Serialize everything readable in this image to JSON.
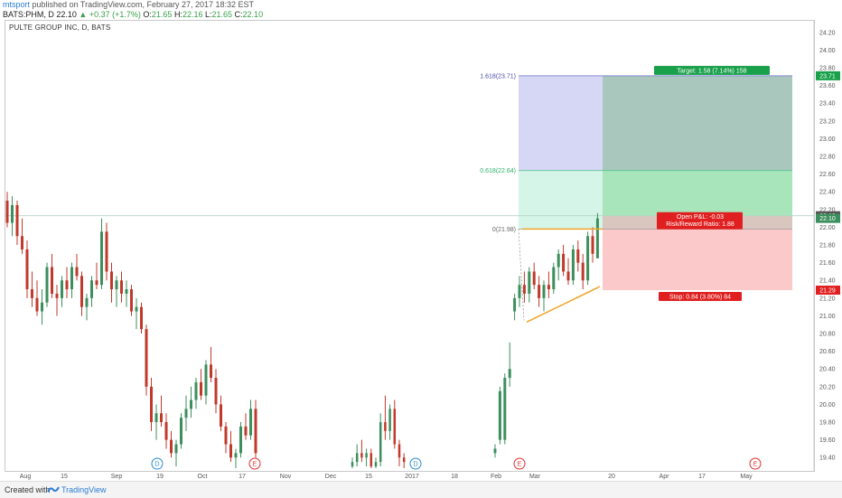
{
  "header": {
    "author": "mtsport",
    "published": "published on TradingView.com, February 27, 2017 18:32 EST",
    "symbol_line": "BATS:PHM, D",
    "last": "22.10",
    "change": "▲ +0.37 (+1.7%)",
    "ohlc": "O: 21.65 H: 22.16 L: 21.65 C: 22.10",
    "ohlc_prefix": "O:",
    "o": "21.65",
    "h_prefix": "H:",
    "h": "22.16",
    "l_prefix": "L:",
    "l": "21.65",
    "c_prefix": "C:",
    "c": "22.10"
  },
  "chart_title": "PULTE GROUP INC, D, BATS",
  "footer": {
    "created": "Created with",
    "brand": "TradingView"
  },
  "colors": {
    "up": "#3c8f5d",
    "down": "#c0392b",
    "fib_top": "#d6d6f5",
    "fib_mid": "#d5f5e8",
    "target": "#a9c7bd",
    "target_light": "#a8e5bb",
    "stop": "#fbc9c9",
    "trend": "#f0a42a"
  },
  "chart_data": {
    "type": "candlestick",
    "title": "PULTE GROUP INC, D, BATS",
    "ylim": [
      19.28,
      24.28
    ],
    "y_ticks": [
      "24.20",
      "24.00",
      "23.80",
      "23.60",
      "23.40",
      "23.20",
      "23.00",
      "22.80",
      "22.60",
      "22.40",
      "22.20",
      "22.00",
      "21.80",
      "21.60",
      "21.40",
      "21.20",
      "21.00",
      "20.80",
      "20.60",
      "20.40",
      "20.20",
      "20.00",
      "19.80",
      "19.60",
      "19.40"
    ],
    "x_ticks": [
      "Aug",
      "15",
      "Sep",
      "19",
      "Oct",
      "17",
      "Nov",
      "Dec",
      "15",
      "2017",
      "18",
      "Feb",
      "Mar",
      "20",
      "Apr",
      "17",
      "May"
    ],
    "price_labels": [
      {
        "text": "23.71",
        "value": 23.71,
        "color": "#19a04a"
      },
      {
        "text": "22.13",
        "value": 22.13,
        "color": "#555555"
      },
      {
        "text": "22.10",
        "value": 22.1,
        "color": "#3c8f5d"
      },
      {
        "text": "21.29",
        "value": 21.29,
        "color": "#e02020"
      }
    ],
    "fib_levels": [
      {
        "label": "1.618(23.71)",
        "value": 23.71
      },
      {
        "label": "0.618(22.64)",
        "value": 22.64
      },
      {
        "label": "0(21.98)",
        "value": 21.98
      }
    ],
    "position": {
      "target_label": "Target: 1.58 (7.14%) 158",
      "stop_label": "Stop: 0.84 (3.80%) 84",
      "open_pl": "Open P&L: -0.03",
      "risk_reward": "Risk/Reward Ratio: 1.88",
      "entry": 22.13,
      "target": 23.71,
      "stop": 21.29
    },
    "events": [
      {
        "x_index": 0,
        "letter": "D"
      },
      {
        "x_index": 1,
        "letter": "E"
      },
      {
        "x_index": 2,
        "letter": "D"
      },
      {
        "x_index": 3,
        "letter": "E"
      },
      {
        "x_index": 4,
        "letter": "E"
      }
    ],
    "candles_seg1": [
      [
        22.3,
        22.4,
        22.0,
        22.05
      ],
      [
        22.05,
        22.35,
        21.9,
        22.25
      ],
      [
        22.25,
        22.3,
        21.8,
        21.9
      ],
      [
        21.9,
        22.1,
        21.7,
        21.75
      ],
      [
        21.75,
        21.85,
        21.2,
        21.3
      ],
      [
        21.3,
        21.5,
        21.1,
        21.2
      ],
      [
        21.2,
        21.4,
        21.0,
        21.05
      ],
      [
        21.05,
        21.3,
        20.9,
        21.15
      ],
      [
        21.15,
        21.6,
        21.1,
        21.55
      ],
      [
        21.55,
        21.7,
        21.2,
        21.25
      ],
      [
        21.25,
        21.35,
        21.0,
        21.2
      ],
      [
        21.2,
        21.45,
        21.1,
        21.4
      ],
      [
        21.4,
        21.55,
        21.2,
        21.3
      ],
      [
        21.3,
        21.6,
        21.2,
        21.55
      ],
      [
        21.55,
        21.7,
        21.4,
        21.45
      ],
      [
        21.45,
        21.5,
        21.0,
        21.1
      ],
      [
        21.1,
        21.25,
        20.95,
        21.2
      ],
      [
        21.2,
        21.45,
        21.1,
        21.4
      ],
      [
        21.4,
        21.6,
        21.3,
        21.35
      ],
      [
        21.35,
        22.1,
        21.3,
        21.95
      ],
      [
        21.95,
        22.05,
        21.4,
        21.5
      ],
      [
        21.5,
        21.6,
        21.15,
        21.3
      ],
      [
        21.3,
        21.45,
        21.1,
        21.4
      ],
      [
        21.4,
        21.5,
        21.15,
        21.25
      ],
      [
        21.25,
        21.4,
        21.1,
        21.3
      ],
      [
        21.3,
        21.35,
        21.0,
        21.05
      ],
      [
        21.05,
        21.2,
        20.85,
        21.1
      ],
      [
        21.1,
        21.15,
        20.8,
        20.85
      ],
      [
        20.85,
        20.9,
        20.1,
        20.2
      ],
      [
        20.2,
        20.3,
        19.7,
        19.8
      ],
      [
        19.8,
        20.0,
        19.6,
        19.9
      ],
      [
        19.9,
        20.1,
        19.75,
        19.8
      ],
      [
        19.8,
        19.9,
        19.5,
        19.6
      ],
      [
        19.6,
        19.7,
        19.4,
        19.45
      ],
      [
        19.45,
        19.6,
        19.3,
        19.55
      ],
      [
        19.55,
        19.9,
        19.5,
        19.85
      ],
      [
        19.85,
        20.1,
        19.7,
        19.95
      ],
      [
        19.95,
        20.2,
        19.85,
        20.05
      ],
      [
        20.05,
        20.3,
        19.95,
        20.25
      ],
      [
        20.25,
        20.4,
        20.05,
        20.1
      ],
      [
        20.1,
        20.5,
        20.0,
        20.45
      ],
      [
        20.45,
        20.65,
        20.25,
        20.3
      ],
      [
        20.3,
        20.4,
        19.9,
        20.0
      ],
      [
        20.0,
        20.1,
        19.7,
        19.75
      ],
      [
        19.75,
        19.8,
        19.45,
        19.55
      ],
      [
        19.55,
        19.7,
        19.35,
        19.4
      ],
      [
        19.4,
        19.5,
        19.28,
        19.45
      ],
      [
        19.45,
        19.8,
        19.4,
        19.75
      ],
      [
        19.75,
        19.9,
        19.6,
        19.65
      ],
      [
        19.65,
        20.05,
        19.6,
        19.95
      ],
      [
        19.95,
        20.05,
        19.4,
        19.45
      ]
    ],
    "candles_seg2": [
      [
        19.3,
        19.4,
        19.28,
        19.35
      ],
      [
        19.35,
        19.55,
        19.3,
        19.45
      ],
      [
        19.45,
        19.6,
        19.35,
        19.4
      ],
      [
        19.4,
        19.5,
        19.3,
        19.45
      ],
      [
        19.45,
        19.5,
        19.28,
        19.3
      ],
      [
        19.3,
        19.4,
        19.28,
        19.35
      ],
      [
        19.35,
        19.9,
        19.3,
        19.8
      ],
      [
        19.8,
        20.1,
        19.6,
        19.7
      ],
      [
        19.7,
        20.0,
        19.6,
        19.95
      ],
      [
        19.95,
        20.05,
        19.5,
        19.55
      ],
      [
        19.55,
        19.6,
        19.3,
        19.4
      ],
      [
        19.4,
        19.45,
        19.28,
        19.35
      ]
    ],
    "candles_seg3": [
      [
        19.45,
        19.55,
        19.4,
        19.5
      ],
      [
        19.6,
        20.2,
        19.55,
        20.15
      ],
      [
        19.6,
        20.35,
        19.55,
        20.3
      ],
      [
        20.3,
        20.7,
        20.2,
        20.4
      ],
      [
        21.05,
        21.25,
        20.95,
        21.2
      ],
      [
        21.2,
        21.45,
        21.1,
        21.35
      ],
      [
        21.35,
        21.5,
        21.15,
        21.25
      ],
      [
        21.25,
        21.55,
        21.15,
        21.5
      ],
      [
        21.5,
        21.6,
        21.3,
        21.35
      ],
      [
        21.35,
        21.45,
        21.1,
        21.2
      ],
      [
        21.2,
        21.4,
        21.05,
        21.35
      ],
      [
        21.35,
        21.5,
        21.2,
        21.3
      ],
      [
        21.3,
        21.6,
        21.25,
        21.55
      ],
      [
        21.55,
        21.75,
        21.4,
        21.7
      ],
      [
        21.7,
        21.8,
        21.45,
        21.5
      ],
      [
        21.5,
        21.65,
        21.35,
        21.4
      ],
      [
        21.4,
        21.8,
        21.35,
        21.75
      ],
      [
        21.75,
        21.85,
        21.5,
        21.6
      ],
      [
        21.6,
        21.7,
        21.3,
        21.4
      ],
      [
        21.4,
        21.95,
        21.35,
        21.9
      ],
      [
        21.9,
        22.0,
        21.6,
        21.7
      ],
      [
        21.65,
        22.16,
        21.65,
        22.1
      ]
    ]
  }
}
